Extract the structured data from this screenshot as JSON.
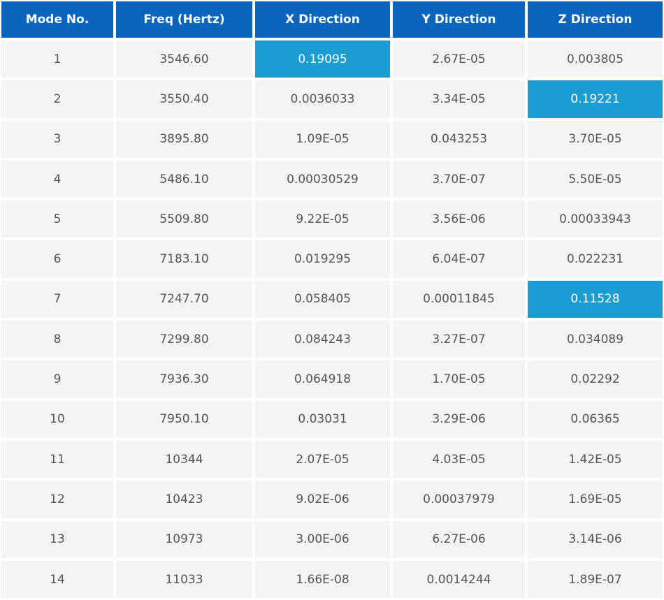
{
  "table": {
    "header": [
      "Mode No.",
      "Freq (Hertz)",
      "X Direction",
      "Y Direction",
      "Z Direction"
    ],
    "rows": [
      [
        "1",
        "3546.60",
        "0.19095",
        "2.67E-05",
        "0.003805"
      ],
      [
        "2",
        "3550.40",
        "0.0036033",
        "3.34E-05",
        "0.19221"
      ],
      [
        "3",
        "3895.80",
        "1.09E-05",
        "0.043253",
        "3.70E-05"
      ],
      [
        "4",
        "5486.10",
        "0.00030529",
        "3.70E-07",
        "5.50E-05"
      ],
      [
        "5",
        "5509.80",
        "9.22E-05",
        "3.56E-06",
        "0.00033943"
      ],
      [
        "6",
        "7183.10",
        "0.019295",
        "6.04E-07",
        "0.022231"
      ],
      [
        "7",
        "7247.70",
        "0.058405",
        "0.00011845",
        "0.11528"
      ],
      [
        "8",
        "7299.80",
        "0.084243",
        "3.27E-07",
        "0.034089"
      ],
      [
        "9",
        "7936.30",
        "0.064918",
        "1.70E-05",
        "0.02292"
      ],
      [
        "10",
        "7950.10",
        "0.03031",
        "3.29E-06",
        "0.06365"
      ],
      [
        "11",
        "10344",
        "2.07E-05",
        "4.03E-05",
        "1.42E-05"
      ],
      [
        "12",
        "10423",
        "9.02E-06",
        "0.00037979",
        "1.69E-05"
      ],
      [
        "13",
        "10973",
        "3.00E-06",
        "6.27E-06",
        "3.14E-06"
      ],
      [
        "14",
        "11033",
        "1.66E-08",
        "0.0014244",
        "1.89E-07"
      ]
    ],
    "highlighted_cells": [
      [
        0,
        2
      ],
      [
        1,
        4
      ],
      [
        6,
        4
      ]
    ],
    "header_color": "#0b65bd",
    "highlight_color": "#1b9dd3"
  }
}
